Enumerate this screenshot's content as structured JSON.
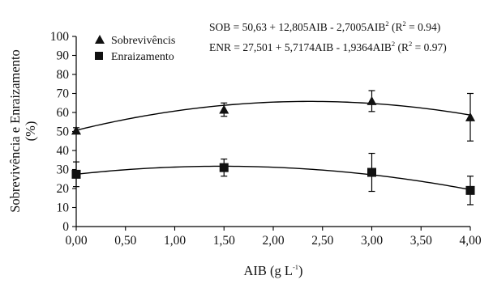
{
  "chart_data": {
    "type": "scatter",
    "x": [
      0,
      1.5,
      3,
      4
    ],
    "xlim": [
      0,
      4
    ],
    "ylim": [
      0,
      100
    ],
    "xticks": [
      "0,00",
      "0,50",
      "1,00",
      "1,50",
      "2,00",
      "2,50",
      "3,00",
      "3,50",
      "4,00"
    ],
    "yticks": [
      "0",
      "10",
      "20",
      "30",
      "40",
      "50",
      "60",
      "70",
      "80",
      "90",
      "100"
    ],
    "xlabel": {
      "main": "AIB (g L",
      "sup": "-1",
      "end": ")"
    },
    "ylabel": {
      "line1": "Sobrevivência e Enraizamento",
      "line2": "(%)"
    },
    "grid": false,
    "legend_position": "top-left",
    "series": [
      {
        "name": "Sobrevivêncis",
        "marker": "triangle",
        "y": [
          50.5,
          61.5,
          66,
          57.5
        ],
        "err": [
          1.5,
          3.5,
          5.5,
          12.5
        ],
        "fit": {
          "a": 50.63,
          "b": 12.805,
          "c": -2.7005
        },
        "equation": {
          "main": "SOB = 50,63 + 12,805AIB - 2,7005AIB",
          "sup": "2",
          "r2_open": "  (R",
          "r2_sup": "2",
          "r2_close": " = 0.94)"
        }
      },
      {
        "name": "Enraizamento",
        "marker": "square",
        "y": [
          27.5,
          31,
          28.5,
          19
        ],
        "err": [
          6.5,
          4.5,
          10,
          7.5
        ],
        "fit": {
          "a": 27.501,
          "b": 5.7174,
          "c": -1.9364
        },
        "equation": {
          "main": "ENR = 27,501 + 5,7174AIB - 1,9364AIB",
          "sup": "2",
          "r2_open": "  (R",
          "r2_sup": "2",
          "r2_close": " = 0.97)"
        }
      }
    ]
  }
}
